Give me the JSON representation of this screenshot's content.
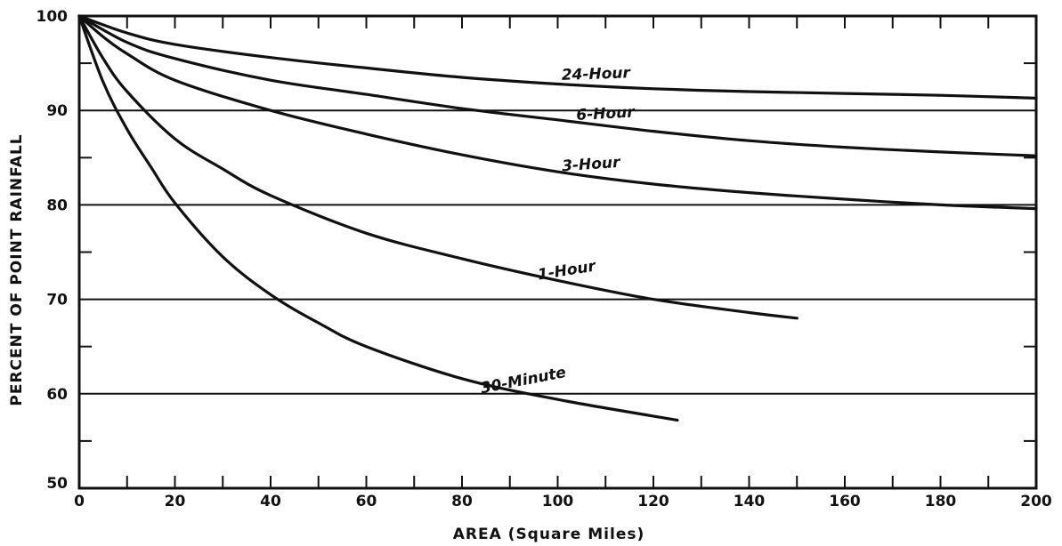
{
  "chart_data": {
    "type": "line",
    "xlabel": "AREA (Square Miles)",
    "ylabel": "PERCENT OF POINT RAINFALL",
    "xlim": [
      0,
      200
    ],
    "ylim": [
      50,
      100
    ],
    "x_ticks": [
      0,
      20,
      40,
      60,
      80,
      100,
      120,
      140,
      160,
      180,
      200
    ],
    "y_ticks": [
      50,
      60,
      70,
      80,
      90,
      100
    ],
    "grid": true,
    "series": [
      {
        "name": "24-Hour",
        "x": [
          0,
          10,
          20,
          40,
          60,
          80,
          100,
          120,
          140,
          160,
          180,
          200
        ],
        "y": [
          100,
          98.2,
          97.0,
          95.6,
          94.5,
          93.5,
          92.8,
          92.3,
          92.0,
          91.8,
          91.6,
          91.3
        ]
      },
      {
        "name": "6-Hour",
        "x": [
          0,
          10,
          20,
          40,
          60,
          80,
          100,
          120,
          140,
          160,
          180,
          200
        ],
        "y": [
          100,
          97.2,
          95.5,
          93.2,
          91.7,
          90.2,
          89.0,
          87.8,
          86.8,
          86.1,
          85.6,
          85.2
        ]
      },
      {
        "name": "3-Hour",
        "x": [
          0,
          5,
          10,
          20,
          40,
          60,
          80,
          100,
          120,
          140,
          160,
          180,
          200
        ],
        "y": [
          100,
          97.8,
          96.0,
          93.2,
          90.0,
          87.5,
          85.3,
          83.5,
          82.2,
          81.3,
          80.6,
          80.0,
          79.6
        ]
      },
      {
        "name": "1-Hour",
        "x": [
          0,
          5,
          10,
          20,
          30,
          40,
          60,
          80,
          100,
          120,
          140,
          150
        ],
        "y": [
          100,
          95.5,
          92.0,
          87.0,
          83.8,
          81.0,
          77.0,
          74.3,
          72.0,
          70.0,
          68.6,
          68.0
        ]
      },
      {
        "name": "30-Minute",
        "x": [
          0,
          5,
          10,
          15,
          20,
          30,
          40,
          50,
          60,
          80,
          100,
          125
        ],
        "y": [
          100,
          93.0,
          88.0,
          84.0,
          80.2,
          74.5,
          70.5,
          67.5,
          65.0,
          61.6,
          59.4,
          57.2
        ]
      }
    ]
  }
}
